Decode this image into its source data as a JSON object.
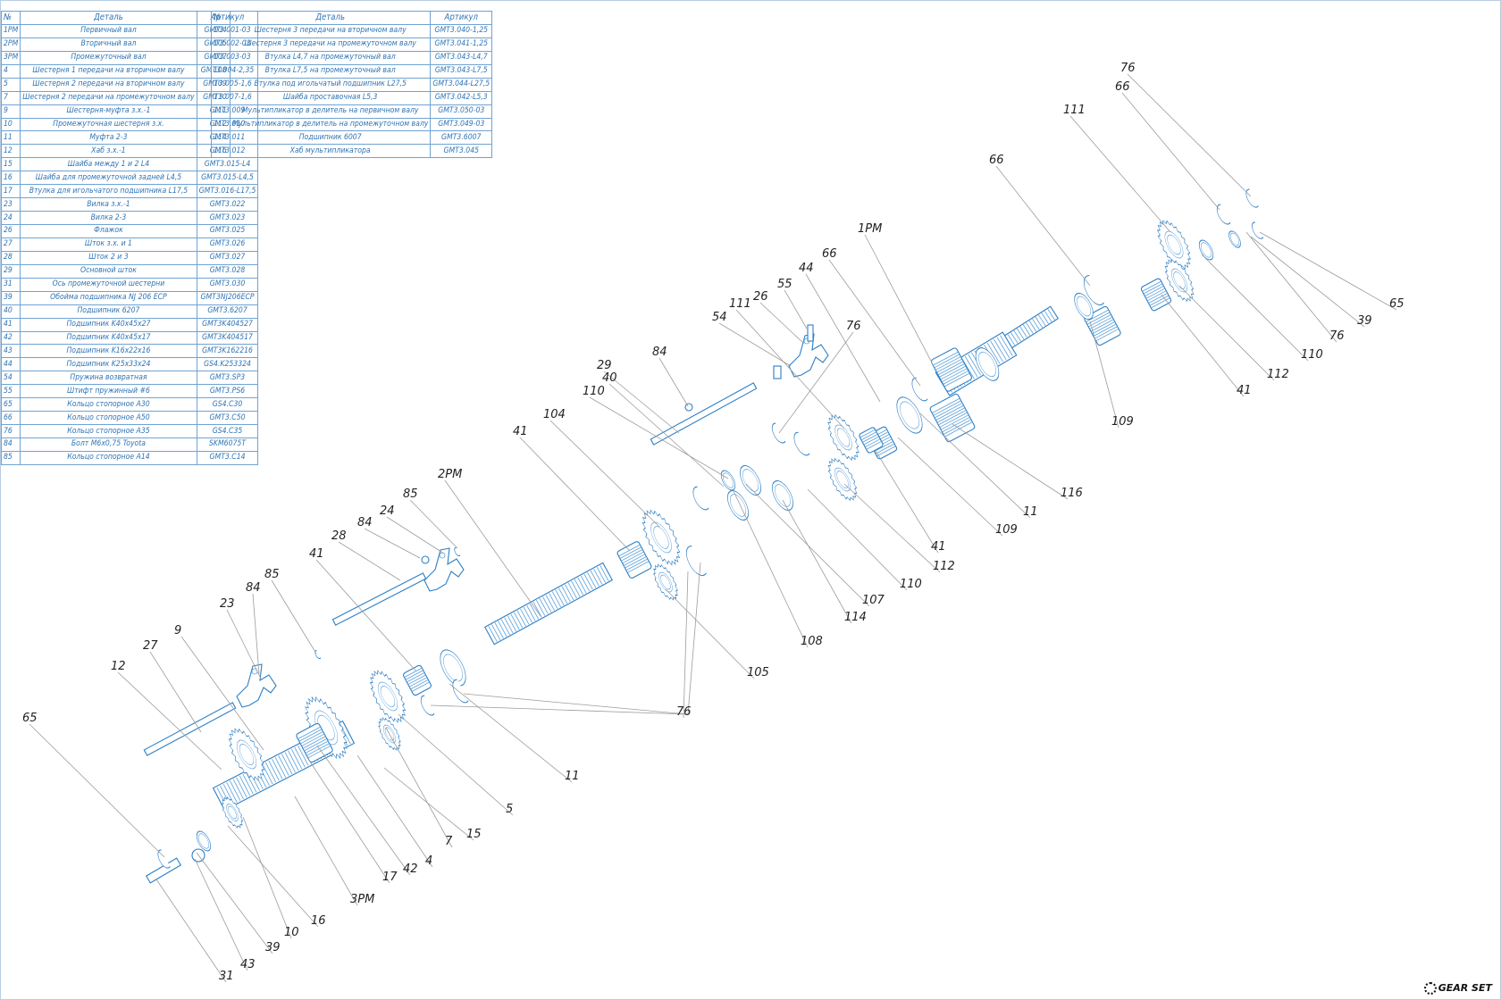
{
  "table_headers": {
    "no": "№",
    "part": "Деталь",
    "article": "Артикул"
  },
  "bom_left": [
    {
      "no": "1PM",
      "part": "Первичный вал",
      "article": "GMT3.001-03"
    },
    {
      "no": "2PM",
      "part": "Вторичный вал",
      "article": "GMT3.002-03"
    },
    {
      "no": "3PM",
      "part": "Промежуточный вал",
      "article": "GMT3.003-03"
    },
    {
      "no": "4",
      "part": "Шестерня 1 передачи на вторичном валу",
      "article": "GMT3.004-2,35"
    },
    {
      "no": "5",
      "part": "Шестерня 2 передачи на вторичном валу",
      "article": "GMT3.005-1,6"
    },
    {
      "no": "7",
      "part": "Шестерня 2 передачи на промежуточном валу",
      "article": "GMT3.007-1,6"
    },
    {
      "no": "9",
      "part": "Шестерня-муфта з.х.-1",
      "article": "GMT3.009"
    },
    {
      "no": "10",
      "part": "Промежуточная шестерня з.х.",
      "article": "GMT3.010"
    },
    {
      "no": "11",
      "part": "Муфта 2-3",
      "article": "GMT3.011"
    },
    {
      "no": "12",
      "part": "Хаб з.х.-1",
      "article": "GMT3.012"
    },
    {
      "no": "15",
      "part": "Шайба между 1 и 2 L4",
      "article": "GMT3.015-L4"
    },
    {
      "no": "16",
      "part": "Шайба для промежуточной задней L4,5",
      "article": "GMT3.015-L4,5"
    },
    {
      "no": "17",
      "part": "Втулка для игольчатого подшипника L17,5",
      "article": "GMT3.016-L17,5"
    },
    {
      "no": "23",
      "part": "Вилка з.х.-1",
      "article": "GMT3.022"
    },
    {
      "no": "24",
      "part": "Вилка 2-3",
      "article": "GMT3.023"
    },
    {
      "no": "26",
      "part": "Флажок",
      "article": "GMT3.025"
    },
    {
      "no": "27",
      "part": "Шток з.х. и 1",
      "article": "GMT3.026"
    },
    {
      "no": "28",
      "part": "Шток 2 и 3",
      "article": "GMT3.027"
    },
    {
      "no": "29",
      "part": "Основной шток",
      "article": "GMT3.028"
    },
    {
      "no": "31",
      "part": "Ось промежуточной шестерни",
      "article": "GMT3.030"
    },
    {
      "no": "39",
      "part": "Обойма подшипника NJ 206 ECP",
      "article": "GMT3NJ206ECP"
    },
    {
      "no": "40",
      "part": "Подшипник 6207",
      "article": "GMT3.6207"
    },
    {
      "no": "41",
      "part": "Подшипник K40x45x27",
      "article": "GMT3K404527"
    },
    {
      "no": "42",
      "part": "Подшипник K40x45x17",
      "article": "GMT3K404517"
    },
    {
      "no": "43",
      "part": "Подшипник K16x22x16",
      "article": "GMT3K162216"
    },
    {
      "no": "44",
      "part": "Подшипник K25x33x24",
      "article": "GS4.K253324"
    },
    {
      "no": "54",
      "part": "Пружина возвратная",
      "article": "GMT3.SP3"
    },
    {
      "no": "55",
      "part": "Штифт пружинный #6",
      "article": "GMT3.PS6"
    },
    {
      "no": "65",
      "part": "Кольцо стопорное А30",
      "article": "GS4.C30"
    },
    {
      "no": "66",
      "part": "Кольцо стопорное А50",
      "article": "GMT3.C50"
    },
    {
      "no": "76",
      "part": "Кольцо стопорное А35",
      "article": "GS4.C35"
    },
    {
      "no": "84",
      "part": "Болт М6х0,75 Toyota",
      "article": "SKM6075T"
    },
    {
      "no": "85",
      "part": "Кольцо стопорное А14",
      "article": "GMT3.C14"
    }
  ],
  "bom_right": [
    {
      "no": "104",
      "part": "Шестерня 3 передачи на вторичном валу",
      "article": "GMT3.040-1,25"
    },
    {
      "no": "105",
      "part": "Шестерня 3 передачи на промежуточном валу",
      "article": "GMT3.041-1,25"
    },
    {
      "no": "107",
      "part": "Втулка L4,7 на промежуточный вал",
      "article": "GMT3.043-L4,7"
    },
    {
      "no": "108",
      "part": "Втулка L7,5 на промежуточный вал",
      "article": "GMT3.043-L7,5"
    },
    {
      "no": "109",
      "part": "Втулка под игольчатый подшипник L27,5",
      "article": "GMT3.044-L27,5"
    },
    {
      "no": "110",
      "part": "Шайба проставочная L5,3",
      "article": "GMT3.042-L5,3"
    },
    {
      "no": "111",
      "part": "Мультипликатор в делитель на первичном валу",
      "article": "GMT3.050-03"
    },
    {
      "no": "112",
      "part": "Мультипликатор в делитель на промежуточном валу",
      "article": "GMT3.049-03"
    },
    {
      "no": "114",
      "part": "Подшипник 6007",
      "article": "GMT3.6007"
    },
    {
      "no": "116",
      "part": "Хаб мультипликатора",
      "article": "GMT3.045"
    }
  ],
  "callouts": [
    "1PM",
    "2PM",
    "3PM",
    "4",
    "5",
    "7",
    "9",
    "10",
    "11",
    "11",
    "12",
    "15",
    "16",
    "17",
    "23",
    "24",
    "26",
    "27",
    "28",
    "29",
    "31",
    "39",
    "39",
    "40",
    "41",
    "41",
    "41",
    "41",
    "42",
    "43",
    "44",
    "54",
    "55",
    "65",
    "65",
    "66",
    "66",
    "66",
    "76",
    "76",
    "76",
    "76",
    "84",
    "84",
    "84",
    "85",
    "85",
    "104",
    "105",
    "107",
    "108",
    "109",
    "109",
    "110",
    "110",
    "110",
    "111",
    "111",
    "112",
    "112",
    "114",
    "116"
  ],
  "logo": {
    "text": "GEAR SET"
  },
  "colors": {
    "line": "#2e7fc4",
    "table": "#2f74b4",
    "leader": "#9c9c9c"
  }
}
